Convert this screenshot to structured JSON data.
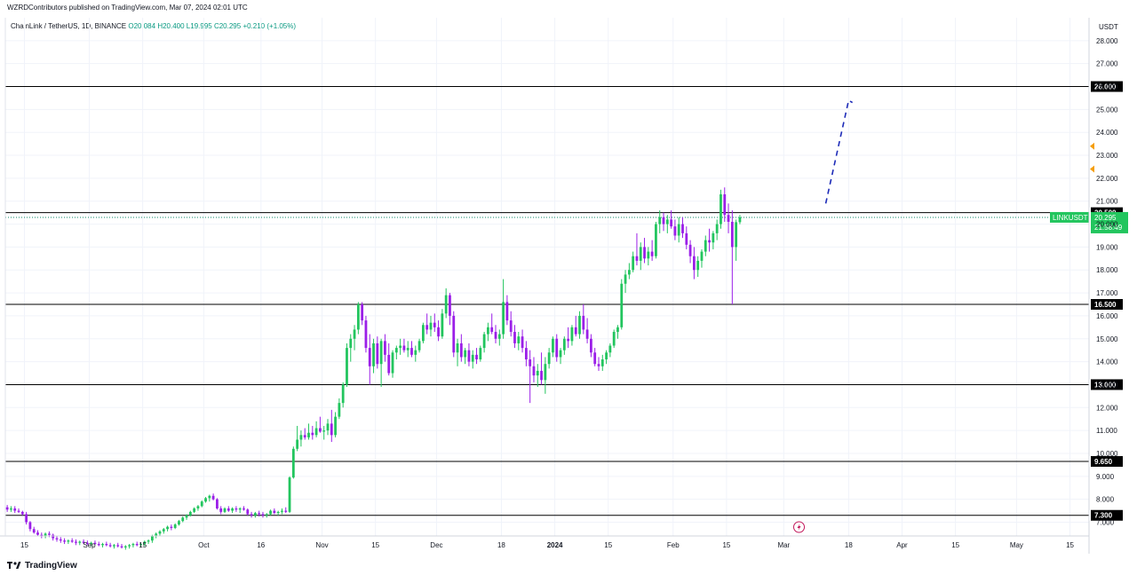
{
  "header": {
    "publisher_line": "WZRDContributors published on TradingView.com, Mar 07, 2024 02:01 UTC"
  },
  "legend": {
    "symbol": "ChainLink / TetherUS, 1D, BINANCE",
    "open": "O20.084",
    "high": "H20.400",
    "low": "L19.995",
    "close": "C20.295",
    "change": "+0.210 (+1.05%)"
  },
  "price_scale": {
    "currency": "USDT"
  },
  "footer": {
    "logo_text": "TradingView"
  },
  "colors": {
    "up": "#22c55e",
    "down": "#9b1fe8",
    "level_line": "#000000",
    "price_line": "#0f8a6a",
    "projection": "#1d2bb8",
    "alert_marker": "#f59e0b"
  },
  "chart_data": {
    "type": "candlestick",
    "symbol": "LINKUSDT",
    "ylim": [
      6.4,
      29.0
    ],
    "yticks": [
      7.0,
      8.0,
      9.0,
      10.0,
      11.0,
      12.0,
      13.0,
      14.0,
      15.0,
      16.0,
      17.0,
      18.0,
      19.0,
      20.0,
      21.0,
      22.0,
      23.0,
      24.0,
      25.0,
      26.0,
      27.0,
      28.0
    ],
    "ytick_labels": [
      "7.000",
      "8.000",
      "9.000",
      "10.000",
      "11.000",
      "12.000",
      "13.000",
      "14.000",
      "15.000",
      "16.000",
      "17.000",
      "18.000",
      "19.000",
      "20.000",
      "21.000",
      "22.000",
      "23.000",
      "24.000",
      "25.000",
      "26.000",
      "27.000",
      "28.000"
    ],
    "xaxis_start": "2023-08-10",
    "xaxis_end": "2024-05-20",
    "xticks": [
      {
        "date": "2023-08-15",
        "label": "15"
      },
      {
        "date": "2023-09-01",
        "label": "Sep"
      },
      {
        "date": "2023-09-15",
        "label": "15"
      },
      {
        "date": "2023-10-01",
        "label": "Oct"
      },
      {
        "date": "2023-10-16",
        "label": "16"
      },
      {
        "date": "2023-11-01",
        "label": "Nov"
      },
      {
        "date": "2023-11-15",
        "label": "15"
      },
      {
        "date": "2023-12-01",
        "label": "Dec"
      },
      {
        "date": "2023-12-18",
        "label": "18"
      },
      {
        "date": "2024-01-01",
        "label": "2024"
      },
      {
        "date": "2024-01-15",
        "label": "15"
      },
      {
        "date": "2024-02-01",
        "label": "Feb"
      },
      {
        "date": "2024-02-15",
        "label": "15"
      },
      {
        "date": "2024-03-01",
        "label": "Mar"
      },
      {
        "date": "2024-03-18",
        "label": "18"
      },
      {
        "date": "2024-04-01",
        "label": "Apr"
      },
      {
        "date": "2024-04-15",
        "label": "15"
      },
      {
        "date": "2024-05-01",
        "label": "May"
      },
      {
        "date": "2024-05-15",
        "label": "15"
      }
    ],
    "horizontal_levels": [
      {
        "value": 26.0,
        "label": "26.000"
      },
      {
        "value": 20.5,
        "label": "20.500"
      },
      {
        "value": 16.5,
        "label": "16.500"
      },
      {
        "value": 13.0,
        "label": "13.000"
      },
      {
        "value": 9.65,
        "label": "9.650"
      },
      {
        "value": 7.3,
        "label": "7.300"
      }
    ],
    "current_price": {
      "value": 20.295,
      "label": "20.295",
      "ticker": "LINKUSDT",
      "countdown": "21:58:49"
    },
    "projection": [
      {
        "date": "2024-03-12",
        "value": 20.9
      },
      {
        "date": "2024-03-18",
        "value": 25.4
      },
      {
        "date": "2024-03-19",
        "value": 25.3
      }
    ],
    "alert_markers": [
      23.4,
      22.4
    ],
    "events": [
      {
        "date": "2024-03-05",
        "type": "dividend-lightning"
      }
    ],
    "start_date": "2023-08-10",
    "candles": [
      [
        7.65,
        7.75,
        7.45,
        7.55
      ],
      [
        7.55,
        7.7,
        7.45,
        7.6
      ],
      [
        7.6,
        7.7,
        7.4,
        7.5
      ],
      [
        7.5,
        7.6,
        7.4,
        7.45
      ],
      [
        7.45,
        7.5,
        7.3,
        7.35
      ],
      [
        7.35,
        7.45,
        6.9,
        7.0
      ],
      [
        7.0,
        7.05,
        6.6,
        6.7
      ],
      [
        6.7,
        6.8,
        6.5,
        6.55
      ],
      [
        6.55,
        6.65,
        6.4,
        6.45
      ],
      [
        6.45,
        6.55,
        6.3,
        6.4
      ],
      [
        6.4,
        6.55,
        6.3,
        6.5
      ],
      [
        6.5,
        6.6,
        6.35,
        6.45
      ],
      [
        6.45,
        6.5,
        6.2,
        6.3
      ],
      [
        6.3,
        6.4,
        6.15,
        6.25
      ],
      [
        6.25,
        6.35,
        6.1,
        6.2
      ],
      [
        6.2,
        6.3,
        6.05,
        6.15
      ],
      [
        6.15,
        6.25,
        6.05,
        6.2
      ],
      [
        6.2,
        6.3,
        6.1,
        6.15
      ],
      [
        6.15,
        6.25,
        6.0,
        6.1
      ],
      [
        6.1,
        6.2,
        6.0,
        6.15
      ],
      [
        6.15,
        6.25,
        6.05,
        6.1
      ],
      [
        6.1,
        6.2,
        6.0,
        6.05
      ],
      [
        6.05,
        6.15,
        5.95,
        6.1
      ],
      [
        6.1,
        6.2,
        6.0,
        6.05
      ],
      [
        6.05,
        6.15,
        5.95,
        6.0
      ],
      [
        6.0,
        6.1,
        5.9,
        6.05
      ],
      [
        6.05,
        6.15,
        5.95,
        6.0
      ],
      [
        6.0,
        6.1,
        5.9,
        5.95
      ],
      [
        5.95,
        6.05,
        5.85,
        6.0
      ],
      [
        6.0,
        6.1,
        5.9,
        5.95
      ],
      [
        5.95,
        6.05,
        5.85,
        5.9
      ],
      [
        5.9,
        6.0,
        5.8,
        5.95
      ],
      [
        5.95,
        6.05,
        5.85,
        6.0
      ],
      [
        6.0,
        6.1,
        5.9,
        6.05
      ],
      [
        6.05,
        6.15,
        5.95,
        6.0
      ],
      [
        6.0,
        6.1,
        5.9,
        6.05
      ],
      [
        6.05,
        6.2,
        5.95,
        6.15
      ],
      [
        6.15,
        6.25,
        6.05,
        6.2
      ],
      [
        6.2,
        6.45,
        6.1,
        6.4
      ],
      [
        6.4,
        6.55,
        6.3,
        6.5
      ],
      [
        6.5,
        6.65,
        6.4,
        6.6
      ],
      [
        6.6,
        6.75,
        6.5,
        6.7
      ],
      [
        6.7,
        6.85,
        6.6,
        6.8
      ],
      [
        6.8,
        6.9,
        6.65,
        6.75
      ],
      [
        6.75,
        6.95,
        6.7,
        6.9
      ],
      [
        6.9,
        7.1,
        6.85,
        7.05
      ],
      [
        7.05,
        7.25,
        7.0,
        7.2
      ],
      [
        7.2,
        7.35,
        7.1,
        7.3
      ],
      [
        7.3,
        7.5,
        7.25,
        7.45
      ],
      [
        7.45,
        7.65,
        7.4,
        7.6
      ],
      [
        7.6,
        7.75,
        7.5,
        7.7
      ],
      [
        7.7,
        7.95,
        7.65,
        7.9
      ],
      [
        7.9,
        8.1,
        7.85,
        8.05
      ],
      [
        8.05,
        8.2,
        7.9,
        8.15
      ],
      [
        8.15,
        8.25,
        7.95,
        8.0
      ],
      [
        8.0,
        8.05,
        7.55,
        7.6
      ],
      [
        7.6,
        7.7,
        7.35,
        7.45
      ],
      [
        7.45,
        7.65,
        7.4,
        7.6
      ],
      [
        7.6,
        7.7,
        7.45,
        7.5
      ],
      [
        7.5,
        7.65,
        7.4,
        7.6
      ],
      [
        7.6,
        7.7,
        7.45,
        7.55
      ],
      [
        7.55,
        7.65,
        7.4,
        7.6
      ],
      [
        7.6,
        7.7,
        7.5,
        7.55
      ],
      [
        7.55,
        7.6,
        7.3,
        7.35
      ],
      [
        7.35,
        7.45,
        7.2,
        7.3
      ],
      [
        7.3,
        7.45,
        7.2,
        7.4
      ],
      [
        7.4,
        7.5,
        7.25,
        7.35
      ],
      [
        7.35,
        7.45,
        7.2,
        7.3
      ],
      [
        7.3,
        7.4,
        7.2,
        7.35
      ],
      [
        7.35,
        7.55,
        7.3,
        7.5
      ],
      [
        7.5,
        7.6,
        7.35,
        7.4
      ],
      [
        7.4,
        7.5,
        7.3,
        7.45
      ],
      [
        7.45,
        7.6,
        7.35,
        7.5
      ],
      [
        7.5,
        7.65,
        7.4,
        7.45
      ],
      [
        7.45,
        9.0,
        7.4,
        8.95
      ],
      [
        8.95,
        10.3,
        8.9,
        10.2
      ],
      [
        10.2,
        11.2,
        10.1,
        10.6
      ],
      [
        10.6,
        11.0,
        10.3,
        10.8
      ],
      [
        10.8,
        11.1,
        10.6,
        10.7
      ],
      [
        10.7,
        11.3,
        10.6,
        10.9
      ],
      [
        10.9,
        11.2,
        10.6,
        10.8
      ],
      [
        10.8,
        11.4,
        10.7,
        11.1
      ],
      [
        11.1,
        11.6,
        10.9,
        10.95
      ],
      [
        10.95,
        11.2,
        10.6,
        11.0
      ],
      [
        11.0,
        11.5,
        10.8,
        11.3
      ],
      [
        11.3,
        11.9,
        10.5,
        10.8
      ],
      [
        10.8,
        11.8,
        10.7,
        11.6
      ],
      [
        11.6,
        12.4,
        11.5,
        12.2
      ],
      [
        12.2,
        13.1,
        12.0,
        13.0
      ],
      [
        13.0,
        14.8,
        12.9,
        14.6
      ],
      [
        14.6,
        15.2,
        14.0,
        15.0
      ],
      [
        15.0,
        15.6,
        14.5,
        15.4
      ],
      [
        15.4,
        16.6,
        15.2,
        16.5
      ],
      [
        16.5,
        16.6,
        15.6,
        15.8
      ],
      [
        15.8,
        16.0,
        14.4,
        14.6
      ],
      [
        14.6,
        15.2,
        13.0,
        13.8
      ],
      [
        13.8,
        15.0,
        13.5,
        14.8
      ],
      [
        14.8,
        15.1,
        13.7,
        13.9
      ],
      [
        13.9,
        15.0,
        12.9,
        14.9
      ],
      [
        14.9,
        15.2,
        14.0,
        14.3
      ],
      [
        14.3,
        14.8,
        13.4,
        13.5
      ],
      [
        13.5,
        14.5,
        13.3,
        14.4
      ],
      [
        14.4,
        14.7,
        14.1,
        14.6
      ],
      [
        14.6,
        15.0,
        14.3,
        14.7
      ],
      [
        14.7,
        15.0,
        14.4,
        14.5
      ],
      [
        14.5,
        14.9,
        14.2,
        14.6
      ],
      [
        14.6,
        14.9,
        14.2,
        14.3
      ],
      [
        14.3,
        14.7,
        14.0,
        14.5
      ],
      [
        14.5,
        15.0,
        14.4,
        14.9
      ],
      [
        14.9,
        15.7,
        14.8,
        15.6
      ],
      [
        15.6,
        16.1,
        15.2,
        15.4
      ],
      [
        15.4,
        16.0,
        15.1,
        15.7
      ],
      [
        15.7,
        16.1,
        15.3,
        15.5
      ],
      [
        15.5,
        15.8,
        14.9,
        15.1
      ],
      [
        15.1,
        16.3,
        15.0,
        16.1
      ],
      [
        16.1,
        17.2,
        15.9,
        16.9
      ],
      [
        16.9,
        17.0,
        15.6,
        16.0
      ],
      [
        16.0,
        16.2,
        14.2,
        14.4
      ],
      [
        14.4,
        15.0,
        13.8,
        14.8
      ],
      [
        14.8,
        15.2,
        14.0,
        14.2
      ],
      [
        14.2,
        14.6,
        13.9,
        14.5
      ],
      [
        14.5,
        14.8,
        13.8,
        14.0
      ],
      [
        14.0,
        14.5,
        13.7,
        14.3
      ],
      [
        14.3,
        14.6,
        13.9,
        14.1
      ],
      [
        14.1,
        14.7,
        14.0,
        14.6
      ],
      [
        14.6,
        15.3,
        14.4,
        15.2
      ],
      [
        15.2,
        15.7,
        14.9,
        15.5
      ],
      [
        15.5,
        16.1,
        15.2,
        15.3
      ],
      [
        15.3,
        15.6,
        14.8,
        15.0
      ],
      [
        15.0,
        15.4,
        14.7,
        15.2
      ],
      [
        15.2,
        17.6,
        15.0,
        16.6
      ],
      [
        16.6,
        16.9,
        15.6,
        15.8
      ],
      [
        15.8,
        16.2,
        15.1,
        15.3
      ],
      [
        15.3,
        15.6,
        14.6,
        14.8
      ],
      [
        14.8,
        15.3,
        14.5,
        15.1
      ],
      [
        15.1,
        15.4,
        14.4,
        14.6
      ],
      [
        14.6,
        14.9,
        13.8,
        14.1
      ],
      [
        14.1,
        14.5,
        12.2,
        13.8
      ],
      [
        13.8,
        14.2,
        13.1,
        13.4
      ],
      [
        13.4,
        13.9,
        12.9,
        13.6
      ],
      [
        13.6,
        14.4,
        13.0,
        13.2
      ],
      [
        13.2,
        14.2,
        12.6,
        13.9
      ],
      [
        13.9,
        14.6,
        13.7,
        14.4
      ],
      [
        14.4,
        15.1,
        14.2,
        15.0
      ],
      [
        15.0,
        15.2,
        14.0,
        14.2
      ],
      [
        14.2,
        14.6,
        13.9,
        14.5
      ],
      [
        14.5,
        15.1,
        14.3,
        15.0
      ],
      [
        15.0,
        15.5,
        14.6,
        14.9
      ],
      [
        14.9,
        15.6,
        14.7,
        15.5
      ],
      [
        15.5,
        16.0,
        15.1,
        15.2
      ],
      [
        15.2,
        16.2,
        15.0,
        16.0
      ],
      [
        16.0,
        16.5,
        15.2,
        15.4
      ],
      [
        15.4,
        15.9,
        14.8,
        15.0
      ],
      [
        15.0,
        15.2,
        14.2,
        14.4
      ],
      [
        14.4,
        14.6,
        13.8,
        13.9
      ],
      [
        13.9,
        14.2,
        13.6,
        13.8
      ],
      [
        13.8,
        14.3,
        13.6,
        14.1
      ],
      [
        14.1,
        14.5,
        13.9,
        14.4
      ],
      [
        14.4,
        14.8,
        14.2,
        14.7
      ],
      [
        14.7,
        15.4,
        14.6,
        15.3
      ],
      [
        15.3,
        15.6,
        15.0,
        15.5
      ],
      [
        15.5,
        17.6,
        15.4,
        17.4
      ],
      [
        17.4,
        18.0,
        17.0,
        17.8
      ],
      [
        17.8,
        18.3,
        17.6,
        18.0
      ],
      [
        18.0,
        18.8,
        17.9,
        18.6
      ],
      [
        18.6,
        19.6,
        18.2,
        18.4
      ],
      [
        18.4,
        19.2,
        18.0,
        19.0
      ],
      [
        19.0,
        19.4,
        18.3,
        18.5
      ],
      [
        18.5,
        19.0,
        18.2,
        18.8
      ],
      [
        18.8,
        19.3,
        18.4,
        18.6
      ],
      [
        18.6,
        20.1,
        18.5,
        20.0
      ],
      [
        20.0,
        20.6,
        19.6,
        20.3
      ],
      [
        20.3,
        20.5,
        19.7,
        20.0
      ],
      [
        20.0,
        20.4,
        19.6,
        20.2
      ],
      [
        20.2,
        20.6,
        19.8,
        19.9
      ],
      [
        19.9,
        20.2,
        19.3,
        19.5
      ],
      [
        19.5,
        20.3,
        19.2,
        20.0
      ],
      [
        20.0,
        20.3,
        19.4,
        19.6
      ],
      [
        19.6,
        19.9,
        18.9,
        19.1
      ],
      [
        19.1,
        19.3,
        18.3,
        18.6
      ],
      [
        18.6,
        19.0,
        17.6,
        18.0
      ],
      [
        18.0,
        18.6,
        17.7,
        18.4
      ],
      [
        18.4,
        18.9,
        18.1,
        18.8
      ],
      [
        18.8,
        19.5,
        18.6,
        19.3
      ],
      [
        19.3,
        19.8,
        18.8,
        19.2
      ],
      [
        19.2,
        19.7,
        18.9,
        19.6
      ],
      [
        19.6,
        20.2,
        19.3,
        20.0
      ],
      [
        20.0,
        21.5,
        19.8,
        21.3
      ],
      [
        21.3,
        21.6,
        20.1,
        20.4
      ],
      [
        20.4,
        20.9,
        19.6,
        20.1
      ],
      [
        20.1,
        20.6,
        16.5,
        19.0
      ],
      [
        19.0,
        20.2,
        18.4,
        20.084
      ],
      [
        20.084,
        20.4,
        19.995,
        20.295
      ]
    ]
  }
}
